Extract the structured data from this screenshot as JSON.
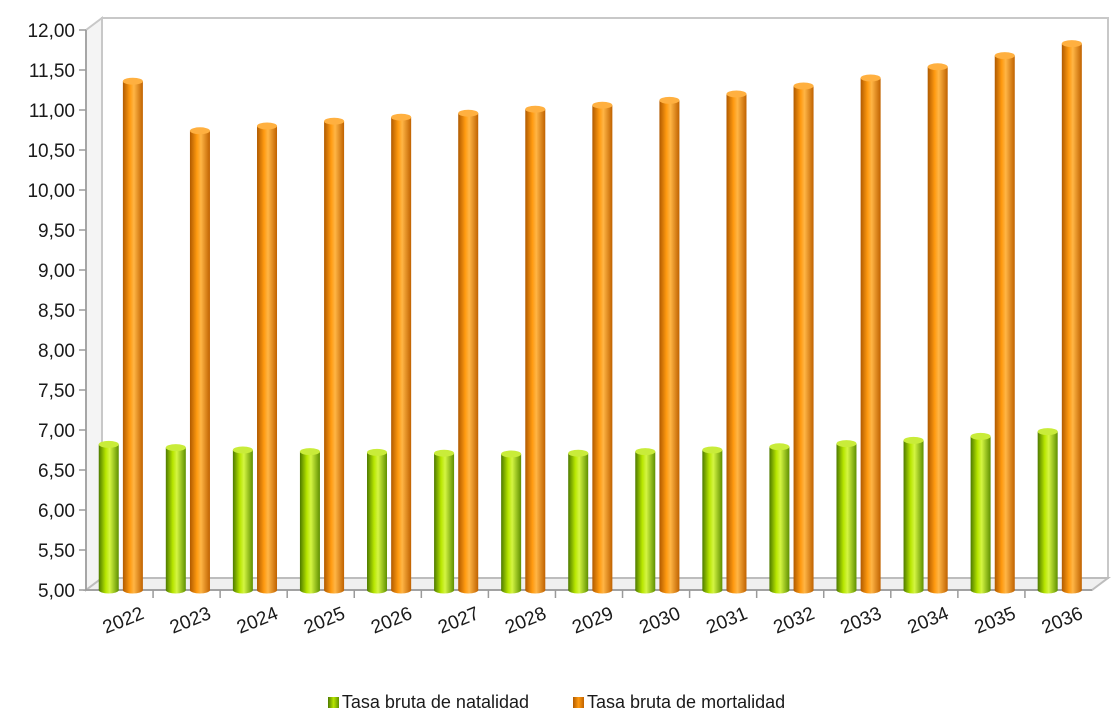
{
  "chart_data": {
    "type": "bar",
    "title": "",
    "xlabel": "",
    "ylabel": "",
    "categories": [
      "2022",
      "2023",
      "2024",
      "2025",
      "2026",
      "2027",
      "2028",
      "2029",
      "2030",
      "2031",
      "2032",
      "2033",
      "2034",
      "2035",
      "2036"
    ],
    "series": [
      {
        "name": "Tasa bruta de natalidad",
        "color": "#8fc400",
        "values": [
          6.82,
          6.78,
          6.75,
          6.73,
          6.72,
          6.71,
          6.7,
          6.71,
          6.73,
          6.75,
          6.79,
          6.83,
          6.87,
          6.92,
          6.98
        ]
      },
      {
        "name": "Tasa bruta de mortalidad",
        "color": "#f28a00",
        "values": [
          11.36,
          10.74,
          10.8,
          10.86,
          10.91,
          10.96,
          11.01,
          11.06,
          11.12,
          11.2,
          11.3,
          11.4,
          11.54,
          11.68,
          11.83
        ]
      }
    ],
    "ylim": [
      5.0,
      12.0
    ],
    "yticks": [
      "5,00",
      "5,50",
      "6,00",
      "6,50",
      "7,00",
      "7,50",
      "8,00",
      "8,50",
      "9,00",
      "9,50",
      "10,00",
      "10,50",
      "11,00",
      "11,50",
      "12,00"
    ],
    "grid": false,
    "legend": "bottom"
  }
}
